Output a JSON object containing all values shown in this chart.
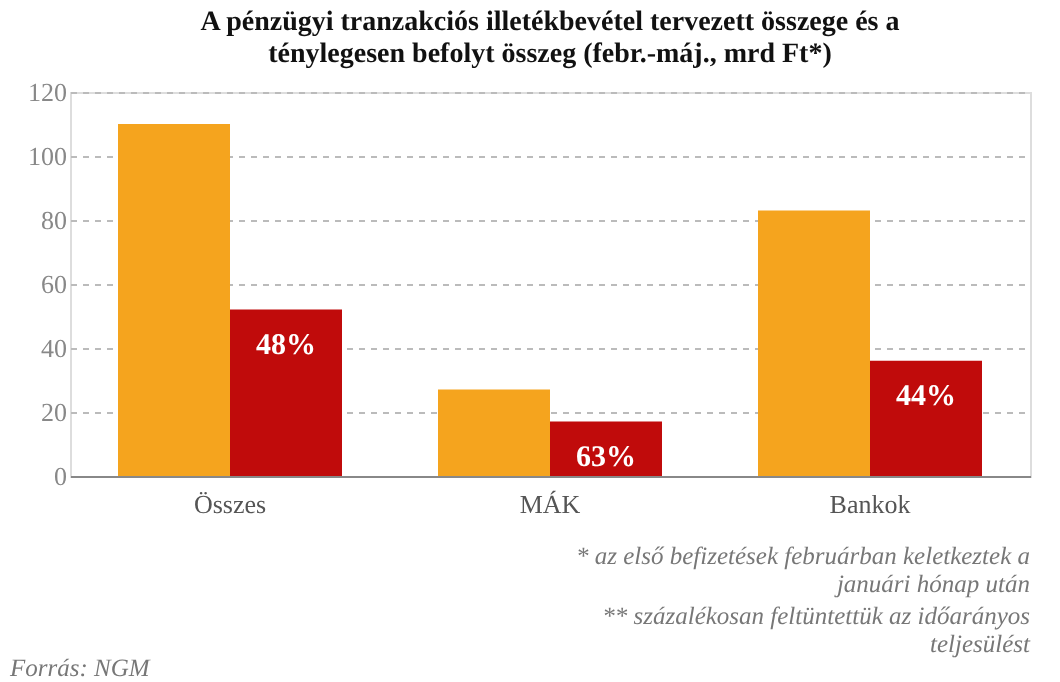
{
  "chart_data": {
    "type": "bar",
    "title": [
      "A pénzügyi tranzakciós illetékbevétel tervezett összege és a",
      "ténylegesen befolyt összeg (febr.-máj., mrd Ft*)"
    ],
    "categories": [
      "Összes",
      "MÁK",
      "Bankok"
    ],
    "series": [
      {
        "color": "#f5a41e",
        "values": [
          110,
          27,
          83
        ]
      },
      {
        "color": "#c00b0b",
        "values": [
          52,
          17,
          36
        ]
      }
    ],
    "ylim": [
      0,
      120
    ],
    "yticks": [
      0,
      20,
      40,
      60,
      80,
      100,
      120
    ],
    "grid": "y",
    "annotations": [
      {
        "text": "48%",
        "x": "Összes",
        "y": 52
      },
      {
        "text": "63%",
        "x": "MÁK",
        "y": 17
      },
      {
        "text": "44%",
        "x": "Bankok",
        "y": 36
      },
      "* az első befizetések februárban keletkeztek a januári hónap után",
      "** százalékosan feltüntettük az időarányos teljesülést",
      "Forrás: NGM"
    ]
  }
}
